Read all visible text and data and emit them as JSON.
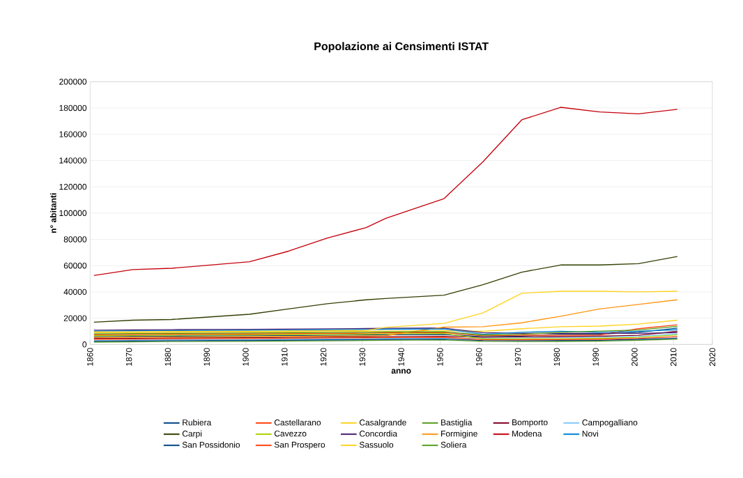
{
  "chart_data": {
    "type": "line",
    "title": "Popolazione ai Censimenti ISTAT",
    "xlabel": "anno",
    "ylabel": "n° abitanti",
    "x": [
      1861,
      1871,
      1881,
      1901,
      1911,
      1921,
      1931,
      1936,
      1951,
      1961,
      1971,
      1981,
      1991,
      2001,
      2011
    ],
    "xlim": [
      1860,
      2020
    ],
    "xticks": [
      1860,
      1870,
      1880,
      1890,
      1900,
      1910,
      1920,
      1930,
      1940,
      1950,
      1960,
      1970,
      1980,
      1990,
      2000,
      2010,
      2020
    ],
    "ylim": [
      0,
      200000
    ],
    "yticks": [
      0,
      20000,
      40000,
      60000,
      80000,
      100000,
      120000,
      140000,
      160000,
      180000,
      200000
    ],
    "grid": "y",
    "legend": "bottom",
    "series": [
      {
        "name": "Rubiera",
        "color": "#004586",
        "values": [
          6000,
          6200,
          6400,
          6600,
          6800,
          7000,
          7200,
          7400,
          7600,
          6000,
          6400,
          7800,
          7900,
          9300,
          12500
        ]
      },
      {
        "name": "Castellarano",
        "color": "#ff420e",
        "values": [
          7400,
          7600,
          7800,
          8000,
          8200,
          8400,
          8600,
          8800,
          9000,
          6600,
          7100,
          7000,
          7200,
          12000,
          15000
        ]
      },
      {
        "name": "Casalgrande",
        "color": "#ffd320",
        "values": [
          8800,
          9000,
          9200,
          9400,
          9600,
          9800,
          10000,
          10200,
          10400,
          10000,
          12000,
          13500,
          14000,
          15500,
          18500
        ]
      },
      {
        "name": "Bastiglia",
        "color": "#579d1c",
        "values": [
          1800,
          2000,
          2200,
          2400,
          2600,
          2800,
          3000,
          3200,
          3400,
          2400,
          2200,
          2300,
          2500,
          3200,
          4000
        ]
      },
      {
        "name": "Bomporto",
        "color": "#7e0021",
        "values": [
          4600,
          4800,
          5000,
          5200,
          5400,
          5600,
          5800,
          6000,
          6200,
          5400,
          5700,
          6000,
          6300,
          7000,
          10000
        ]
      },
      {
        "name": "Campogalliano",
        "color": "#83caff",
        "values": [
          3200,
          3400,
          3600,
          3800,
          4000,
          4200,
          4400,
          4600,
          4800,
          4800,
          5000,
          5200,
          5500,
          6200,
          8000
        ]
      },
      {
        "name": "Carpi",
        "color": "#314004",
        "values": [
          17000,
          18500,
          19000,
          23000,
          27000,
          31000,
          34000,
          35000,
          37500,
          45500,
          55000,
          60500,
          60500,
          61500,
          67000
        ]
      },
      {
        "name": "Cavezzo",
        "color": "#aecf00",
        "values": [
          6700,
          6900,
          7100,
          7300,
          7500,
          7700,
          7900,
          8100,
          8300,
          4200,
          4300,
          4400,
          4700,
          5400,
          7300
        ]
      },
      {
        "name": "Concordia",
        "color": "#4b1f6f",
        "values": [
          10900,
          11100,
          11300,
          11500,
          11700,
          11900,
          12100,
          12300,
          12500,
          9000,
          8500,
          8500,
          8500,
          8500,
          9000
        ]
      },
      {
        "name": "Formigine",
        "color": "#ff950e",
        "values": [
          5300,
          5500,
          5700,
          5900,
          6100,
          6300,
          6500,
          6700,
          13200,
          13500,
          16500,
          21500,
          27000,
          30500,
          34000
        ]
      },
      {
        "name": "Modena",
        "color": "#c5000b",
        "values": [
          52500,
          57000,
          58000,
          63000,
          71000,
          81000,
          89000,
          96000,
          111000,
          139000,
          171000,
          180500,
          177000,
          175500,
          179000
        ]
      },
      {
        "name": "Novi",
        "color": "#0084d1",
        "values": [
          10200,
          10400,
          10600,
          10800,
          11000,
          11200,
          11400,
          11600,
          11800,
          7800,
          9300,
          10100,
          9300,
          10100,
          11200
        ]
      },
      {
        "name": "San Possidonio",
        "color": "#004586",
        "values": [
          2500,
          2700,
          2900,
          3100,
          3300,
          3500,
          3700,
          3900,
          4100,
          3000,
          2900,
          3000,
          3200,
          3900,
          4800
        ]
      },
      {
        "name": "San Prospero",
        "color": "#ff420e",
        "values": [
          3900,
          4100,
          4300,
          4500,
          4700,
          4900,
          5100,
          5300,
          5500,
          3600,
          3600,
          3700,
          3900,
          4600,
          6000
        ]
      },
      {
        "name": "Sassuolo",
        "color": "#ffd320",
        "values": [
          9500,
          9700,
          9900,
          10100,
          10300,
          10500,
          10700,
          13000,
          16000,
          24000,
          39000,
          40500,
          40500,
          40000,
          40500
        ]
      },
      {
        "name": "Soliera",
        "color": "#579d1c",
        "values": [
          8100,
          8300,
          8500,
          8700,
          8900,
          9100,
          9300,
          9500,
          9700,
          7200,
          7800,
          9300,
          10200,
          11000,
          13800
        ]
      }
    ]
  }
}
